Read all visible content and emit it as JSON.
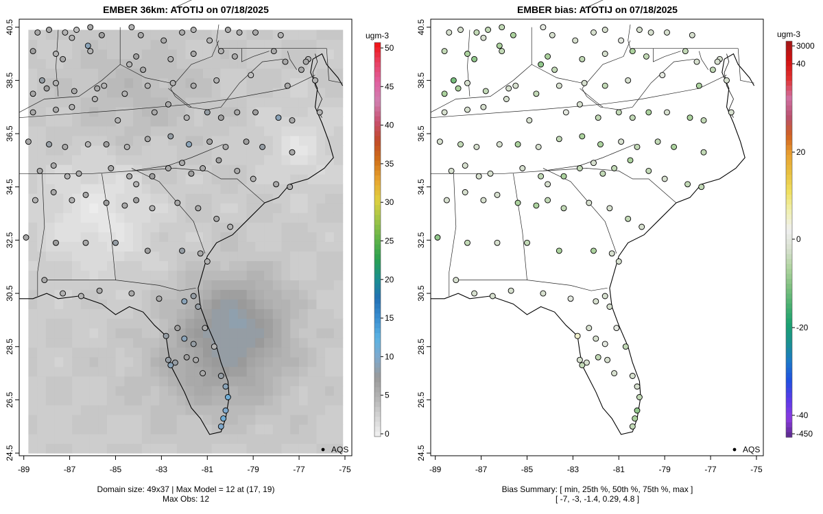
{
  "chart_data": [
    {
      "type": "heatmap",
      "title": "EMBER 36km: ATOTIJ on 07/18/2025",
      "x_ticks": [
        "-89",
        "-87",
        "-85",
        "-83",
        "-81",
        "-79",
        "-77",
        "-75"
      ],
      "y_ticks": [
        "24.5",
        "26.5",
        "28.5",
        "30.5",
        "32.5",
        "34.5",
        "36.5",
        "38.5",
        "40.5"
      ],
      "xlim": [
        -89.2,
        -74.7
      ],
      "ylim": [
        24.4,
        40.8
      ],
      "grid_domain": {
        "lon": [
          -88.8,
          -75.1
        ],
        "lat": [
          24.5,
          40.4
        ]
      },
      "colorbar": {
        "unit": "ugm-3",
        "range": [
          0,
          50
        ],
        "ticks": [
          "0",
          "5",
          "10",
          "15",
          "20",
          "25",
          "30",
          "35",
          "40",
          "45",
          "50"
        ],
        "colors": [
          "#f2f2f2",
          "#d4d4d4",
          "#b3b3b3",
          "#9a9a9a",
          "#7fa9cc",
          "#5cb2e3",
          "#3a8fd0",
          "#2270b5",
          "#1a8f8f",
          "#2aa050",
          "#60b348",
          "#a0c448",
          "#e0d040",
          "#e8a430",
          "#d07018",
          "#c04a28",
          "#c85070",
          "#d080b0",
          "#e060a0",
          "#e84060",
          "#f01010"
        ]
      },
      "legend": "AQS",
      "footer": [
        "Domain size: 49x37 | Max Model = 12 at (17, 19)",
        "Max Obs: 12"
      ]
    },
    {
      "type": "scatter",
      "title": "EMBER bias: ATOTIJ on 07/18/2025",
      "x_ticks": [
        "-89",
        "-87",
        "-85",
        "-83",
        "-81",
        "-79",
        "-77",
        "-75"
      ],
      "y_ticks": [
        "24.5",
        "26.5",
        "28.5",
        "30.5",
        "32.5",
        "34.5",
        "36.5",
        "38.5",
        "40.5"
      ],
      "xlim": [
        -89.2,
        -74.7
      ],
      "ylim": [
        24.4,
        40.8
      ],
      "colorbar": {
        "unit": "ugm-3",
        "ticks": [
          "-450",
          "-40",
          "-20",
          "0",
          "20",
          "40",
          "3000"
        ],
        "colors": [
          "#5a2a8a",
          "#8a3ae0",
          "#5a3ae8",
          "#2050e0",
          "#1c78c8",
          "#1a9090",
          "#1aa070",
          "#4ab070",
          "#80c080",
          "#b0d4a0",
          "#d8e0d0",
          "#f0f0f0",
          "#f0f0b0",
          "#f0e060",
          "#e8c040",
          "#e8a030",
          "#d06020",
          "#b85070",
          "#d070a0",
          "#e03030",
          "#d01010",
          "#a01818"
        ]
      },
      "legend": "AQS",
      "footer": [
        "Bias Summary: [ min, 25th %, 50th %, 75th %, max ]",
        "[ -7,   -3,   -1.4,   0.29,   4.8 ]"
      ],
      "bias_summary": {
        "min": -7,
        "p25": -3,
        "median": -1.4,
        "p75": 0.29,
        "max": 4.8
      }
    }
  ],
  "stations": [
    [
      -88.4,
      40.3,
      6,
      -1
    ],
    [
      -87.9,
      40.4,
      6,
      -1
    ],
    [
      -87.2,
      40.3,
      5,
      -2
    ],
    [
      -86.9,
      40.1,
      5,
      -1
    ],
    [
      -86.7,
      40.4,
      4,
      -2
    ],
    [
      -86.1,
      40.5,
      6,
      -2
    ],
    [
      -85.6,
      40.2,
      7,
      -3
    ],
    [
      -84.3,
      40.5,
      5,
      0
    ],
    [
      -83.9,
      40.2,
      6,
      -1
    ],
    [
      -82.9,
      40.0,
      6,
      -1
    ],
    [
      -82.1,
      40.3,
      6,
      -1
    ],
    [
      -81.6,
      40.4,
      5,
      -1
    ],
    [
      -80.9,
      40.0,
      5,
      0
    ],
    [
      -80.1,
      40.4,
      6,
      -1
    ],
    [
      -79.6,
      40.3,
      6,
      -1
    ],
    [
      -78.9,
      40.3,
      6,
      -1
    ],
    [
      -77.8,
      40.2,
      5,
      -1
    ],
    [
      -88.6,
      39.6,
      7,
      -2
    ],
    [
      -87.6,
      39.5,
      5,
      -3
    ],
    [
      -87.3,
      39.3,
      6,
      -4
    ],
    [
      -86.2,
      39.8,
      9,
      -3
    ],
    [
      -86.1,
      39.6,
      5,
      -2
    ],
    [
      -84.4,
      39.1,
      5,
      -4
    ],
    [
      -84.1,
      39.4,
      7,
      -3
    ],
    [
      -83.8,
      38.9,
      6,
      -2
    ],
    [
      -82.6,
      39.3,
      5,
      -2
    ],
    [
      -81.6,
      39.5,
      6,
      -1
    ],
    [
      -80.4,
      39.6,
      5,
      -3
    ],
    [
      -79.8,
      39.4,
      6,
      -2
    ],
    [
      -78.1,
      39.6,
      6,
      -2
    ],
    [
      -77.6,
      39.2,
      6,
      -1
    ],
    [
      -76.6,
      39.3,
      5,
      -1
    ],
    [
      -76.7,
      39.2,
      6,
      -1
    ],
    [
      -88.2,
      38.5,
      8,
      -5
    ],
    [
      -88.0,
      38.2,
      7,
      -3
    ],
    [
      -88.6,
      38.0,
      6,
      -3
    ],
    [
      -87.6,
      38.4,
      5,
      -1
    ],
    [
      -86.8,
      38.1,
      6,
      -2
    ],
    [
      -85.8,
      38.2,
      6,
      -1
    ],
    [
      -85.5,
      38.3,
      5,
      -1
    ],
    [
      -84.6,
      38.0,
      5,
      -2
    ],
    [
      -83.6,
      38.3,
      5,
      -1
    ],
    [
      -82.5,
      38.4,
      5,
      -1
    ],
    [
      -81.6,
      38.3,
      6,
      -2
    ],
    [
      -80.6,
      38.5,
      5,
      -1
    ],
    [
      -79.1,
      38.7,
      4,
      0
    ],
    [
      -77.5,
      38.3,
      6,
      -3
    ],
    [
      -76.9,
      38.9,
      6,
      -2
    ],
    [
      -76.3,
      38.5,
      5,
      -1
    ],
    [
      -88.6,
      37.3,
      6,
      -1
    ],
    [
      -87.6,
      37.4,
      6,
      -1
    ],
    [
      -86.9,
      37.5,
      5,
      -1
    ],
    [
      -85.9,
      37.8,
      5,
      -1
    ],
    [
      -84.9,
      37.0,
      5,
      -1
    ],
    [
      -83.3,
      37.3,
      6,
      0
    ],
    [
      -82.7,
      37.6,
      6,
      -1
    ],
    [
      -81.9,
      37.1,
      5,
      -2
    ],
    [
      -81.0,
      37.3,
      8,
      -2
    ],
    [
      -80.4,
      37.1,
      7,
      -2
    ],
    [
      -79.7,
      37.3,
      6,
      -3
    ],
    [
      -78.9,
      37.3,
      7,
      -1
    ],
    [
      -77.9,
      37.1,
      9,
      -3
    ],
    [
      -77.3,
      37.0,
      6,
      -2
    ],
    [
      -76.1,
      37.3,
      5,
      -1
    ],
    [
      -88.8,
      36.2,
      6,
      -1
    ],
    [
      -87.9,
      36.1,
      8,
      -2
    ],
    [
      -87.2,
      36.0,
      6,
      -1
    ],
    [
      -86.2,
      36.1,
      5,
      -1
    ],
    [
      -85.4,
      36.1,
      7,
      -3
    ],
    [
      -84.5,
      36.0,
      5,
      -1
    ],
    [
      -83.6,
      36.3,
      6,
      -2
    ],
    [
      -82.6,
      36.4,
      8,
      -3
    ],
    [
      -81.8,
      36.1,
      9,
      -3
    ],
    [
      -80.9,
      36.2,
      7,
      -1
    ],
    [
      -80.2,
      36.0,
      6,
      -2
    ],
    [
      -79.3,
      36.2,
      7,
      -2
    ],
    [
      -78.6,
      36.0,
      8,
      -3
    ],
    [
      -77.3,
      35.8,
      6,
      -2
    ],
    [
      -88.3,
      35.1,
      6,
      -1
    ],
    [
      -87.7,
      35.3,
      6,
      -1
    ],
    [
      -87.1,
      34.9,
      5,
      -1
    ],
    [
      -86.6,
      35.0,
      6,
      -1
    ],
    [
      -85.2,
      35.2,
      6,
      -1
    ],
    [
      -84.4,
      34.9,
      6,
      -2
    ],
    [
      -84.1,
      34.6,
      5,
      -1
    ],
    [
      -83.4,
      34.9,
      7,
      -3
    ],
    [
      -82.7,
      35.2,
      6,
      -2
    ],
    [
      -82.1,
      35.4,
      6,
      -1
    ],
    [
      -81.7,
      35.0,
      7,
      -2
    ],
    [
      -81.2,
      35.2,
      6,
      -2
    ],
    [
      -80.5,
      35.5,
      7,
      -3
    ],
    [
      -79.7,
      35.1,
      6,
      -2
    ],
    [
      -79.0,
      34.8,
      5,
      -1
    ],
    [
      -78.0,
      34.6,
      6,
      -2
    ],
    [
      -77.4,
      34.5,
      6,
      -2
    ],
    [
      -88.5,
      34.0,
      5,
      -1
    ],
    [
      -87.7,
      34.3,
      6,
      -1
    ],
    [
      -86.9,
      34.0,
      5,
      -1
    ],
    [
      -86.3,
      34.2,
      6,
      -1
    ],
    [
      -85.4,
      33.9,
      7,
      -3
    ],
    [
      -84.6,
      33.8,
      6,
      -3
    ],
    [
      -84.1,
      34.0,
      7,
      -2
    ],
    [
      -83.4,
      33.7,
      5,
      -2
    ],
    [
      -82.3,
      33.9,
      6,
      -1
    ],
    [
      -81.4,
      33.7,
      6,
      -1
    ],
    [
      -80.6,
      33.3,
      6,
      -2
    ],
    [
      -80.0,
      33.0,
      5,
      -1
    ],
    [
      -88.9,
      32.6,
      6,
      -4
    ],
    [
      -87.6,
      32.4,
      7,
      -2
    ],
    [
      -86.3,
      32.4,
      6,
      -1
    ],
    [
      -85.0,
      32.4,
      8,
      -2
    ],
    [
      -83.6,
      32.1,
      7,
      -3
    ],
    [
      -82.1,
      32.1,
      8,
      -3
    ],
    [
      -81.3,
      32.0,
      6,
      -1
    ],
    [
      -81.0,
      31.7,
      5,
      -1
    ],
    [
      -88.1,
      31.0,
      6,
      -1
    ],
    [
      -87.3,
      30.5,
      5,
      -1
    ],
    [
      -86.5,
      30.4,
      5,
      -1
    ],
    [
      -85.7,
      30.6,
      6,
      -1
    ],
    [
      -84.3,
      30.5,
      6,
      -1
    ],
    [
      -83.1,
      30.3,
      6,
      0
    ],
    [
      -82.0,
      30.2,
      9,
      -1
    ],
    [
      -81.6,
      30.4,
      8,
      -1
    ],
    [
      -81.4,
      30.0,
      8,
      -1
    ],
    [
      -81.1,
      29.2,
      6,
      0
    ],
    [
      -80.7,
      28.5,
      5,
      -2
    ],
    [
      -82.8,
      28.9,
      8,
      2
    ],
    [
      -82.3,
      29.2,
      7,
      -1
    ],
    [
      -82.0,
      28.8,
      9,
      -1
    ],
    [
      -81.6,
      28.6,
      8,
      0
    ],
    [
      -81.5,
      28.0,
      6,
      -1
    ],
    [
      -81.9,
      28.1,
      7,
      -2
    ],
    [
      -82.4,
      27.9,
      8,
      -1
    ],
    [
      -82.6,
      27.8,
      9,
      -2
    ],
    [
      -82.7,
      28.0,
      8,
      -1
    ],
    [
      -81.2,
      27.5,
      6,
      -1
    ],
    [
      -80.4,
      27.4,
      8,
      -1
    ],
    [
      -80.2,
      27.0,
      9,
      -1
    ],
    [
      -80.1,
      26.6,
      11,
      -2
    ],
    [
      -80.2,
      26.1,
      10,
      -4
    ],
    [
      -80.3,
      25.8,
      11,
      -3
    ],
    [
      -80.4,
      25.5,
      10,
      -2
    ]
  ]
}
